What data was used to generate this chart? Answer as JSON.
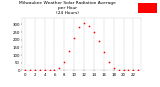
{
  "title": "Milwaukee Weather Solar Radiation Average  per Hour  (24 Hours)",
  "title_line1": "Milwaukee Weather Solar Radiation Average",
  "title_line2": "per Hour",
  "title_line3": "(24 Hours)",
  "hours": [
    0,
    1,
    2,
    3,
    4,
    5,
    6,
    7,
    8,
    9,
    10,
    11,
    12,
    13,
    14,
    15,
    16,
    17,
    18,
    19,
    20,
    21,
    22,
    23
  ],
  "solar": [
    0,
    0,
    0,
    0,
    0,
    0,
    2,
    15,
    55,
    130,
    210,
    280,
    310,
    290,
    250,
    190,
    120,
    55,
    15,
    2,
    0,
    0,
    0,
    0
  ],
  "dot_color": "#ff0000",
  "bg_color": "#ffffff",
  "outer_bg": "#ffffff",
  "grid_color": "#999999",
  "title_color": "#000000",
  "tick_color": "#000000",
  "legend_color": "#ff0000",
  "ylim": [
    0,
    340
  ],
  "xlim": [
    -0.5,
    23.5
  ],
  "title_fontsize": 3.2,
  "tick_fontsize": 2.8,
  "ytick_labels": [
    "0",
    "50",
    "100",
    "150",
    "200",
    "250",
    "300"
  ],
  "ytick_values": [
    0,
    50,
    100,
    150,
    200,
    250,
    300
  ],
  "xtick_values": [
    0,
    2,
    4,
    6,
    8,
    10,
    12,
    14,
    16,
    18,
    20,
    22
  ],
  "xtick_labels": [
    "0",
    "2",
    "4",
    "6",
    "8",
    "10",
    "12",
    "14",
    "16",
    "18",
    "20",
    "22"
  ]
}
